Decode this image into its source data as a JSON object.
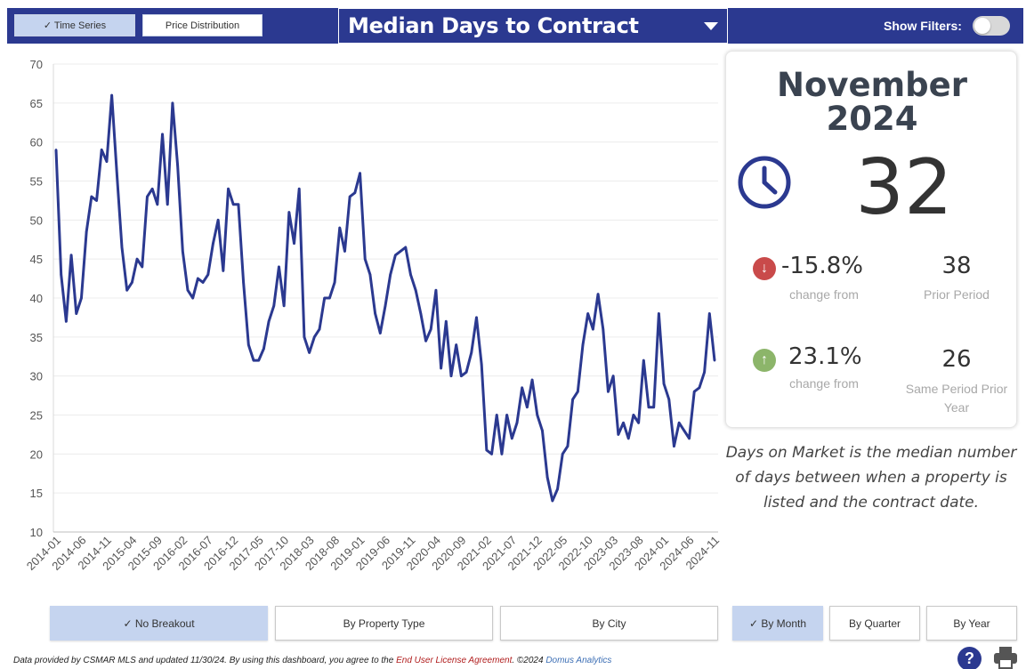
{
  "header": {
    "tabs": [
      {
        "label": "✓ Time Series",
        "active": true
      },
      {
        "label": "Price Distribution",
        "active": false
      }
    ],
    "metric_title": "Median Days to Contract",
    "filters_label": "Show Filters:",
    "filters_on": false
  },
  "kpi": {
    "month": "November",
    "year": "2024",
    "value": "32",
    "change1": {
      "pct": "-15.8%",
      "label": "change from",
      "value": "38",
      "value_label": "Prior Period",
      "direction": "down",
      "color": "#c94a4a"
    },
    "change2": {
      "pct": "23.1%",
      "label": "change from",
      "value": "26",
      "value_label": "Same Period Prior Year",
      "direction": "up",
      "color": "#8cb56a"
    },
    "description": "Days on Market is the median number of days between when a property is listed and the contract date."
  },
  "breakout_buttons": [
    {
      "label": "✓ No Breakout",
      "active": true
    },
    {
      "label": "By Property Type",
      "active": false
    },
    {
      "label": "By City",
      "active": false
    }
  ],
  "period_buttons": [
    {
      "label": "✓ By Month",
      "active": true
    },
    {
      "label": "By Quarter",
      "active": false
    },
    {
      "label": "By Year",
      "active": false
    }
  ],
  "footer": {
    "text1": "Data provided by CSMAR MLS and updated 11/30/24.  By using this dashboard, you agree to the ",
    "link1": "End User License Agreement",
    "text2": ".  ©2024 ",
    "link2": "Domus Analytics"
  },
  "icons": {
    "help": "?",
    "clock": "clock-icon",
    "printer": "printer-icon"
  },
  "colors": {
    "brand": "#2b3990",
    "line": "#2b3990",
    "active_button": "#c5d4ef"
  },
  "chart_data": {
    "type": "line",
    "xlabel": "",
    "ylabel": "",
    "ylim": [
      10,
      70
    ],
    "yticks": [
      10,
      15,
      20,
      25,
      30,
      35,
      40,
      45,
      50,
      55,
      60,
      65,
      70
    ],
    "grid": true,
    "x_tick_labels": [
      "2014-01",
      "2014-06",
      "2014-11",
      "2015-04",
      "2015-09",
      "2016-02",
      "2016-07",
      "2016-12",
      "2017-05",
      "2017-10",
      "2018-03",
      "2018-08",
      "2019-01",
      "2019-06",
      "2019-11",
      "2020-04",
      "2020-09",
      "2021-02",
      "2021-07",
      "2021-12",
      "2022-05",
      "2022-10",
      "2023-03",
      "2023-08",
      "2024-01",
      "2024-06",
      "2024-11"
    ],
    "x_start": "2014-01",
    "x_end": "2024-11",
    "series": [
      {
        "values": [
          59,
          43,
          37,
          45.5,
          38,
          40,
          48.5,
          53,
          52.5,
          59,
          57.5,
          66,
          56,
          46.5,
          41,
          42,
          45,
          44,
          53,
          54,
          52,
          61,
          52,
          65,
          57,
          46,
          41,
          40,
          42.5,
          42,
          43,
          47,
          50,
          43.5,
          54,
          52,
          52,
          42,
          34,
          32,
          32,
          33.5,
          37,
          39,
          44,
          39,
          51,
          47,
          54,
          35,
          33,
          35,
          36,
          40,
          40,
          42,
          49,
          46,
          53,
          53.5,
          56,
          45,
          43,
          38,
          35.5,
          39,
          43,
          45.5,
          46,
          46.5,
          43,
          41,
          38,
          34.5,
          36,
          41,
          31,
          37,
          30,
          34,
          30,
          30.5,
          33,
          37.5,
          31.5,
          20.5,
          20,
          25,
          20,
          25,
          22,
          24,
          28.5,
          26,
          29.5,
          25,
          23,
          17,
          14,
          15.5,
          20,
          21,
          27,
          28,
          34,
          38,
          36,
          40.5,
          36,
          28,
          30,
          22.5,
          24,
          22,
          25,
          24,
          32,
          26,
          26,
          38,
          29,
          27,
          21,
          24,
          23,
          22,
          28,
          28.5,
          30.5,
          38,
          32
        ]
      }
    ]
  }
}
